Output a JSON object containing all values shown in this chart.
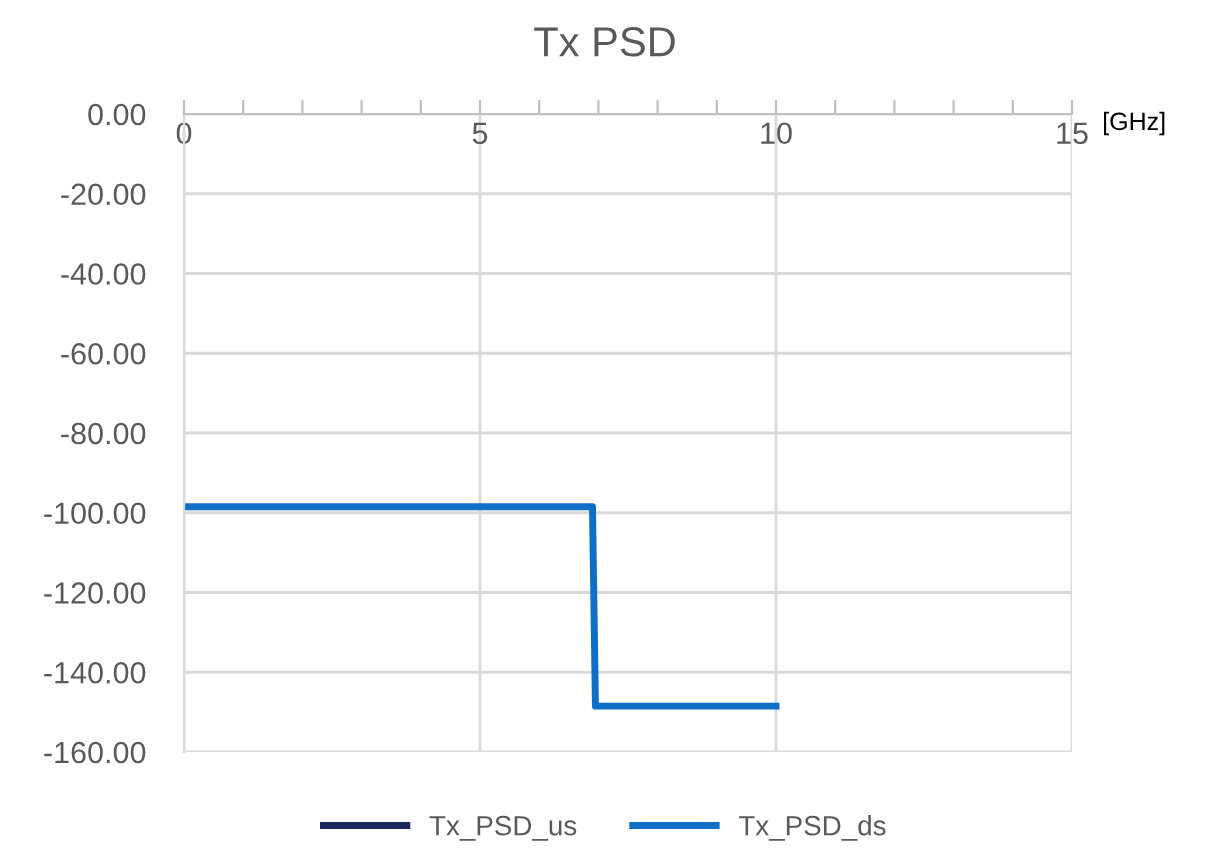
{
  "chart_data": {
    "type": "line",
    "title": "Tx PSD",
    "xlabel": "[GHz]",
    "xlim": [
      0,
      15
    ],
    "xticks": [
      0,
      {
        "value": 1,
        "label": null
      },
      {
        "value": 2,
        "label": null
      },
      {
        "value": 3,
        "label": null
      },
      {
        "value": 4,
        "label": null
      },
      5,
      {
        "value": 6,
        "label": null
      },
      {
        "value": 7,
        "label": null
      },
      {
        "value": 8,
        "label": null
      },
      {
        "value": 9,
        "label": null
      },
      10,
      {
        "value": 11,
        "label": null
      },
      {
        "value": 12,
        "label": null
      },
      {
        "value": 13,
        "label": null
      },
      {
        "value": 14,
        "label": null
      },
      15
    ],
    "ylim": [
      -160,
      0
    ],
    "yticks": [
      {
        "value": 0,
        "label": "0.00"
      },
      {
        "value": -20,
        "label": "-20.00"
      },
      {
        "value": -40,
        "label": "-40.00"
      },
      {
        "value": -60,
        "label": "-60.00"
      },
      {
        "value": -80,
        "label": "-80.00"
      },
      {
        "value": -100,
        "label": "-100.00"
      },
      {
        "value": -120,
        "label": "-120.00"
      },
      {
        "value": -140,
        "label": "-140.00"
      },
      {
        "value": -160,
        "label": "-160.00"
      }
    ],
    "grid": true,
    "legend": "bottom",
    "marker": "none",
    "line_style": "solid",
    "series": [
      {
        "name": "Tx_PSD_us",
        "color": "#1b2a5e"
      },
      {
        "name": "Tx_PSD_ds",
        "color": "#0f6fc6",
        "x": [
          0,
          6.9,
          6.95,
          10
        ],
        "values": [
          -98.5,
          -98.5,
          -148.5,
          -148.5
        ]
      }
    ]
  }
}
